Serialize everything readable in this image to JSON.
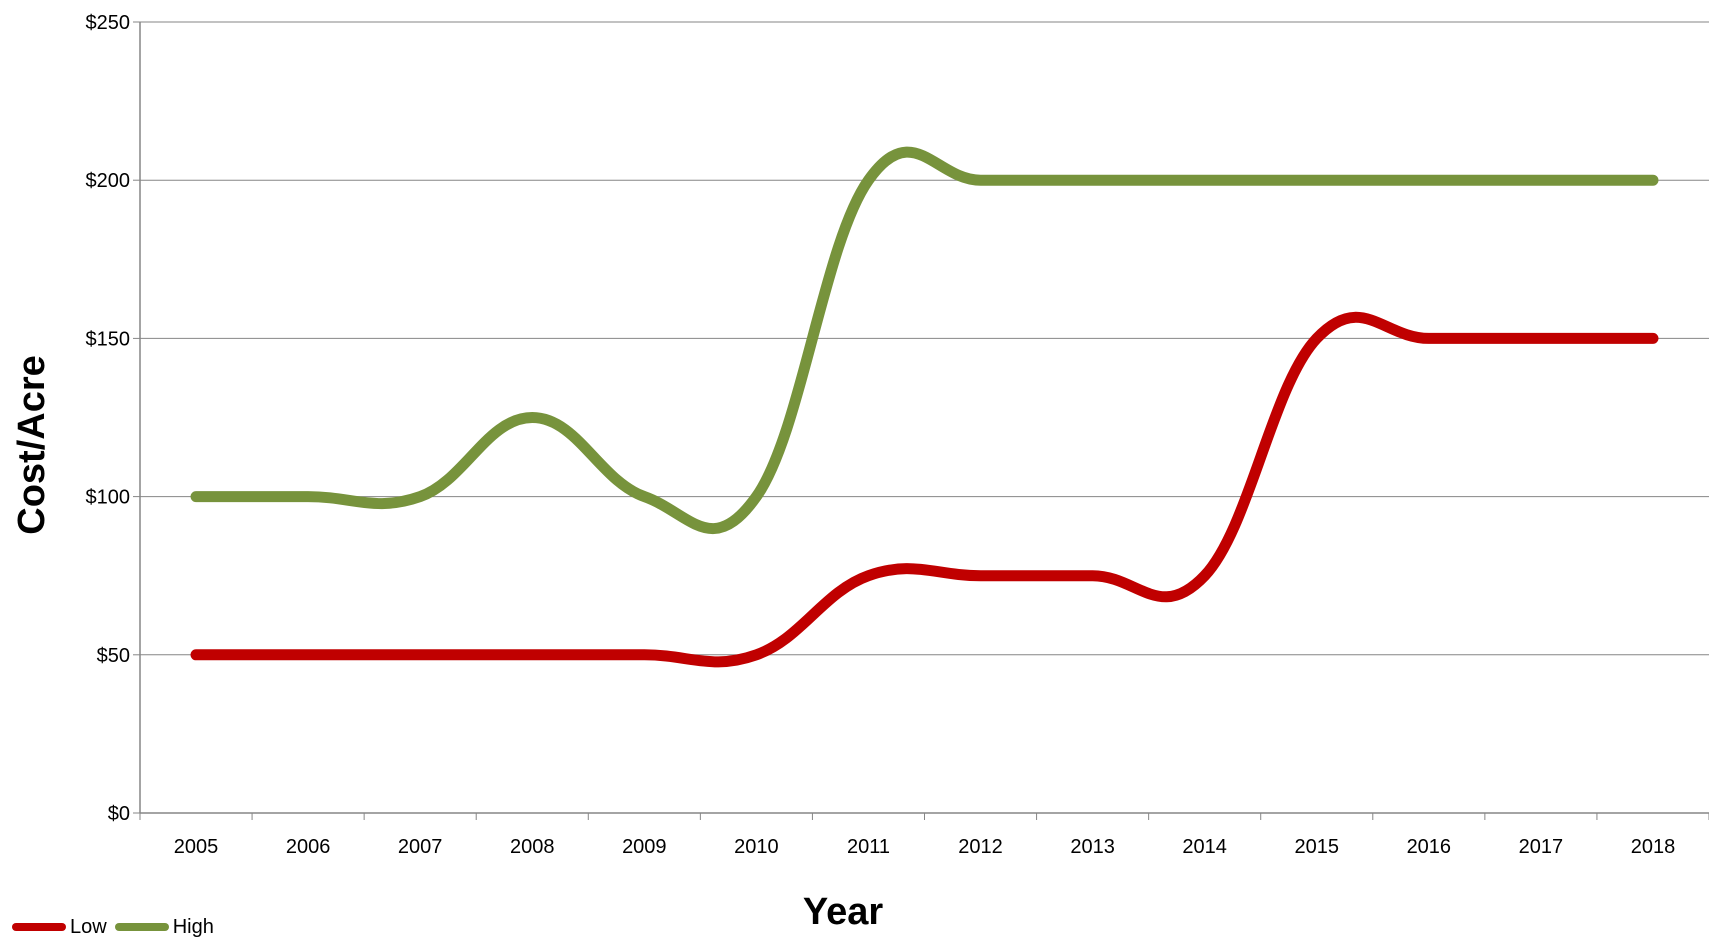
{
  "chart_data": {
    "type": "line",
    "title": "",
    "xlabel": "Year",
    "ylabel": "Cost/Acre",
    "categories": [
      "2005",
      "2006",
      "2007",
      "2008",
      "2009",
      "2010",
      "2011",
      "2012",
      "2013",
      "2014",
      "2015",
      "2016",
      "2017",
      "2018"
    ],
    "ylim": [
      0,
      250
    ],
    "yticks": [
      0,
      50,
      100,
      150,
      200,
      250
    ],
    "ytick_labels": [
      "$0",
      "$50",
      "$100",
      "$150",
      "$200",
      "$250"
    ],
    "grid": true,
    "smooth": true,
    "legend_position": "bottom-left",
    "series": [
      {
        "name": "Low",
        "color": "#C00000",
        "values": [
          50,
          50,
          50,
          50,
          50,
          50,
          75,
          75,
          75,
          75,
          150,
          150,
          150,
          150
        ]
      },
      {
        "name": "High",
        "color": "#77933C",
        "values": [
          100,
          100,
          100,
          125,
          100,
          100,
          200,
          200,
          200,
          200,
          200,
          200,
          200,
          200
        ]
      }
    ]
  }
}
